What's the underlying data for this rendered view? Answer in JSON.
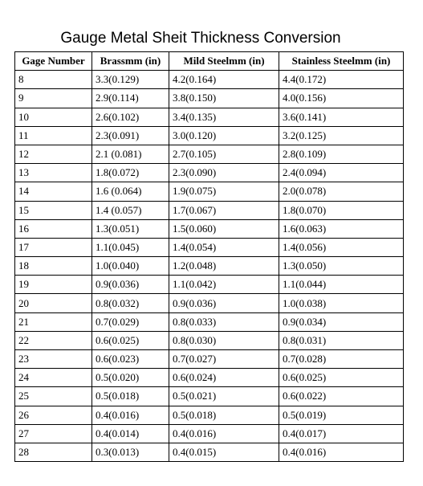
{
  "title": "Gauge Metal Sheit Thickness Conversion",
  "table": {
    "headers": [
      "Gage Number",
      "Brassmm (in)",
      "Mild Steelmm (in)",
      "Stainless Steelmm (in)"
    ],
    "rows": [
      [
        "8",
        "3.3(0.129)",
        "4.2(0.164)",
        "4.4(0.172)"
      ],
      [
        "9",
        "2.9(0.114)",
        "3.8(0.150)",
        "4.0(0.156)"
      ],
      [
        "10",
        "2.6(0.102)",
        "3.4(0.135)",
        "3.6(0.141)"
      ],
      [
        "11",
        "2.3(0.091)",
        "3.0(0.120)",
        "3.2(0.125)"
      ],
      [
        "12",
        "2.1 (0.081)",
        "2.7(0.105)",
        "2.8(0.109)"
      ],
      [
        "13",
        "1.8(0.072)",
        "2.3(0.090)",
        "2.4(0.094)"
      ],
      [
        "14",
        "1.6 (0.064)",
        "1.9(0.075)",
        "2.0(0.078)"
      ],
      [
        "15",
        "1.4 (0.057)",
        "1.7(0.067)",
        "1.8(0.070)"
      ],
      [
        "16",
        "1.3(0.051)",
        "1.5(0.060)",
        "1.6(0.063)"
      ],
      [
        "17",
        "1.1(0.045)",
        "1.4(0.054)",
        "1.4(0.056)"
      ],
      [
        "18",
        "1.0(0.040)",
        "1.2(0.048)",
        "1.3(0.050)"
      ],
      [
        "19",
        "0.9(0.036)",
        "1.1(0.042)",
        "1.1(0.044)"
      ],
      [
        "20",
        "0.8(0.032)",
        "0.9(0.036)",
        "1.0(0.038)"
      ],
      [
        "21",
        "0.7(0.029)",
        "0.8(0.033)",
        "0.9(0.034)"
      ],
      [
        "22",
        "0.6(0.025)",
        "0.8(0.030)",
        "0.8(0.031)"
      ],
      [
        "23",
        "0.6(0.023)",
        "0.7(0.027)",
        "0.7(0.028)"
      ],
      [
        "24",
        "0.5(0.020)",
        "0.6(0.024)",
        "0.6(0.025)"
      ],
      [
        "25",
        "0.5(0.018)",
        "0.5(0.021)",
        "0.6(0.022)"
      ],
      [
        "26",
        "0.4(0.016)",
        "0.5(0.018)",
        "0.5(0.019)"
      ],
      [
        "27",
        "0.4(0.014)",
        "0.4(0.016)",
        "0.4(0.017)"
      ],
      [
        "28",
        "0.3(0.013)",
        "0.4(0.015)",
        "0.4(0.016)"
      ]
    ]
  }
}
